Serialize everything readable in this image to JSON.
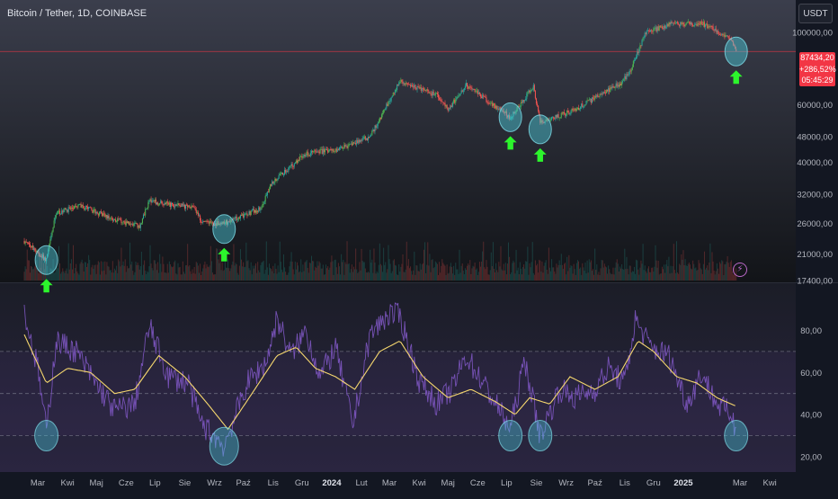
{
  "header": {
    "title": "Bitcoin / Tether, 1D, COINBASE",
    "currency": "USDT"
  },
  "price_badge": {
    "price": "87434,20",
    "change": "+286,52%",
    "countdown": "05:45:29"
  },
  "colors": {
    "background": "#131722",
    "up_candle": "#26a69a",
    "up_candle_bright": "#4caf50",
    "down_candle": "#ef5350",
    "price_line": "#f23645",
    "rsi_line": "#7e57c2",
    "rsi_ma_line": "#f5d76e",
    "marker_fill": "#4dd0e1",
    "arrow": "#2cf52c",
    "text": "#b2b5be"
  },
  "icons": {
    "alert": "lightning-bolt-icon"
  },
  "chart_data": [
    {
      "type": "candlestick",
      "title": "Bitcoin / Tether, 1D, COINBASE",
      "y_scale": "log",
      "ylim": [
        17400,
        115000
      ],
      "yticks": [
        "100000,00",
        "60000,00",
        "48000,00",
        "40000,00",
        "32000,00",
        "26000,00",
        "21000,00",
        "17400,00"
      ],
      "ytick_values": [
        100000,
        60000,
        48000,
        40000,
        32000,
        26000,
        21000,
        17400
      ],
      "last_price": 87434.2,
      "price_path": {
        "x": [
          "2023-02-15",
          "2023-03-10",
          "2023-03-20",
          "2023-04-15",
          "2023-05-15",
          "2023-06-15",
          "2023-06-25",
          "2023-08-10",
          "2023-08-20",
          "2023-09-10",
          "2023-10-20",
          "2023-10-30",
          "2023-12-05",
          "2024-01-10",
          "2024-02-10",
          "2024-03-12",
          "2024-04-20",
          "2024-05-01",
          "2024-05-20",
          "2024-07-05",
          "2024-07-29",
          "2024-08-05",
          "2024-09-10",
          "2024-10-28",
          "2024-11-06",
          "2024-11-22",
          "2024-12-17",
          "2025-01-20",
          "2025-02-20",
          "2025-02-25"
        ],
        "y": [
          23000,
          20100,
          28000,
          29500,
          27000,
          25500,
          30500,
          29000,
          26000,
          26000,
          29000,
          34500,
          42500,
          44000,
          48000,
          71000,
          64000,
          58000,
          69000,
          55000,
          68500,
          53000,
          58000,
          70000,
          75000,
          99000,
          106000,
          106500,
          96000,
          87434
        ]
      },
      "markers": [
        {
          "x": "2023-03-10",
          "y": 20100
        },
        {
          "x": "2023-09-11",
          "y": 25000
        },
        {
          "x": "2024-07-05",
          "y": 55000
        },
        {
          "x": "2024-08-05",
          "y": 50500
        },
        {
          "x": "2025-02-25",
          "y": 87434
        }
      ]
    },
    {
      "type": "line",
      "series": [
        {
          "role": "rsi",
          "x": [
            "2023-02-15",
            "2023-03-01",
            "2023-03-10",
            "2023-03-20",
            "2023-04-10",
            "2023-04-30",
            "2023-05-20",
            "2023-06-10",
            "2023-06-25",
            "2023-07-15",
            "2023-08-05",
            "2023-08-18",
            "2023-09-11",
            "2023-10-05",
            "2023-10-25",
            "2023-11-05",
            "2023-11-20",
            "2023-12-05",
            "2023-12-20",
            "2024-01-05",
            "2024-01-23",
            "2024-02-10",
            "2024-03-01",
            "2024-03-12",
            "2024-04-01",
            "2024-04-20",
            "2024-05-05",
            "2024-05-20",
            "2024-06-20",
            "2024-07-05",
            "2024-07-20",
            "2024-08-05",
            "2024-08-25",
            "2024-09-10",
            "2024-10-01",
            "2024-10-15",
            "2024-11-01",
            "2024-11-12",
            "2024-11-28",
            "2024-12-17",
            "2025-01-05",
            "2025-01-20",
            "2025-02-05",
            "2025-02-20",
            "2025-02-25"
          ],
          "y": [
            88,
            62,
            32,
            75,
            70,
            55,
            42,
            45,
            82,
            58,
            55,
            36,
            25,
            55,
            65,
            86,
            68,
            80,
            58,
            72,
            35,
            78,
            88,
            87,
            56,
            45,
            52,
            68,
            45,
            33,
            66,
            30,
            52,
            48,
            52,
            62,
            55,
            85,
            72,
            68,
            45,
            60,
            45,
            40,
            32
          ]
        },
        {
          "role": "rsi-ma",
          "x": [
            "2023-02-15",
            "2023-03-10",
            "2023-04-01",
            "2023-04-25",
            "2023-05-20",
            "2023-06-10",
            "2023-07-05",
            "2023-08-01",
            "2023-08-25",
            "2023-09-15",
            "2023-10-10",
            "2023-11-05",
            "2023-11-25",
            "2023-12-15",
            "2024-01-05",
            "2024-01-25",
            "2024-02-20",
            "2024-03-12",
            "2024-04-05",
            "2024-05-01",
            "2024-05-25",
            "2024-06-20",
            "2024-07-10",
            "2024-07-25",
            "2024-08-15",
            "2024-09-05",
            "2024-10-01",
            "2024-10-25",
            "2024-11-15",
            "2024-12-01",
            "2024-12-25",
            "2025-01-15",
            "2025-02-05",
            "2025-02-25"
          ],
          "y": [
            78,
            55,
            62,
            60,
            50,
            52,
            68,
            58,
            45,
            33,
            50,
            68,
            72,
            62,
            58,
            52,
            70,
            75,
            58,
            48,
            52,
            46,
            40,
            48,
            45,
            58,
            52,
            58,
            75,
            70,
            58,
            55,
            48,
            44
          ]
        }
      ],
      "ylim": [
        14,
        96
      ],
      "yticks": [
        "80,00",
        "60,00",
        "40,00",
        "20,00"
      ],
      "ytick_values": [
        80,
        60,
        40,
        20
      ],
      "reference_lines": [
        70,
        50,
        30
      ],
      "markers": [
        {
          "x": "2023-03-10",
          "y": 30
        },
        {
          "x": "2023-09-11",
          "y": 25
        },
        {
          "x": "2024-07-05",
          "y": 30
        },
        {
          "x": "2024-08-05",
          "y": 30
        },
        {
          "x": "2025-02-25",
          "y": 30
        }
      ]
    }
  ],
  "x_axis": {
    "labels": [
      {
        "text": "Mar",
        "date": "2023-03-01",
        "bold": false
      },
      {
        "text": "Kwi",
        "date": "2023-04-01",
        "bold": false
      },
      {
        "text": "Maj",
        "date": "2023-05-01",
        "bold": false
      },
      {
        "text": "Cze",
        "date": "2023-06-01",
        "bold": false
      },
      {
        "text": "Lip",
        "date": "2023-07-01",
        "bold": false
      },
      {
        "text": "Sie",
        "date": "2023-08-01",
        "bold": false
      },
      {
        "text": "Wrz",
        "date": "2023-09-01",
        "bold": false
      },
      {
        "text": "Paź",
        "date": "2023-10-01",
        "bold": false
      },
      {
        "text": "Lis",
        "date": "2023-11-01",
        "bold": false
      },
      {
        "text": "Gru",
        "date": "2023-12-01",
        "bold": false
      },
      {
        "text": "2024",
        "date": "2024-01-01",
        "bold": true
      },
      {
        "text": "Lut",
        "date": "2024-02-01",
        "bold": false
      },
      {
        "text": "Mar",
        "date": "2024-03-01",
        "bold": false
      },
      {
        "text": "Kwi",
        "date": "2024-04-01",
        "bold": false
      },
      {
        "text": "Maj",
        "date": "2024-05-01",
        "bold": false
      },
      {
        "text": "Cze",
        "date": "2024-06-01",
        "bold": false
      },
      {
        "text": "Lip",
        "date": "2024-07-01",
        "bold": false
      },
      {
        "text": "Sie",
        "date": "2024-08-01",
        "bold": false
      },
      {
        "text": "Wrz",
        "date": "2024-09-01",
        "bold": false
      },
      {
        "text": "Paź",
        "date": "2024-10-01",
        "bold": false
      },
      {
        "text": "Lis",
        "date": "2024-11-01",
        "bold": false
      },
      {
        "text": "Gru",
        "date": "2024-12-01",
        "bold": false
      },
      {
        "text": "2025",
        "date": "2025-01-01",
        "bold": true
      },
      {
        "text": "Mar",
        "date": "2025-03-01",
        "bold": false
      },
      {
        "text": "Kwi",
        "date": "2025-04-01",
        "bold": false
      }
    ]
  }
}
